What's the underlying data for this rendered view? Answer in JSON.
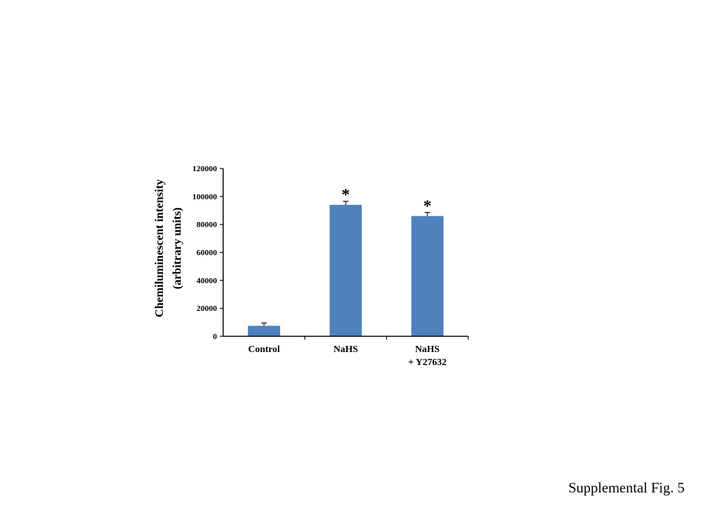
{
  "caption": "Supplemental Fig. 5",
  "chart_data": {
    "type": "bar",
    "categories": [
      [
        "Control"
      ],
      [
        "NaHS"
      ],
      [
        "NaHS",
        "+ Y27632"
      ]
    ],
    "values": [
      7500,
      94000,
      86000
    ],
    "errors": [
      2000,
      2500,
      2500
    ],
    "significance": [
      "",
      "*",
      "*"
    ],
    "ylabel": [
      "Chemiluminescent intensity",
      "(arbitrary units)"
    ],
    "xlabel": "",
    "ylim": [
      0,
      120000
    ],
    "yticks": [
      0,
      20000,
      40000,
      60000,
      80000,
      100000,
      120000
    ],
    "grid": false,
    "legend": "none",
    "bar_color": "#4f81bd",
    "axis_color": "#000000"
  }
}
